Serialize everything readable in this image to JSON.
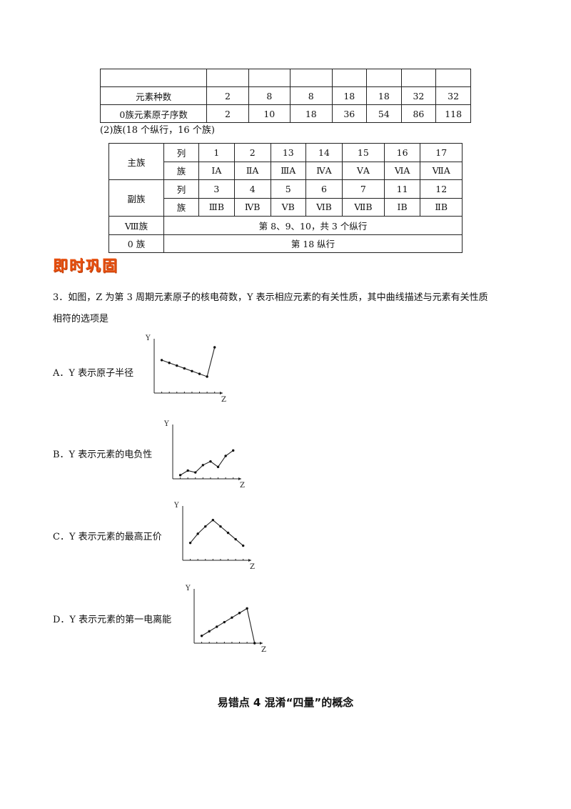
{
  "table1": {
    "header": [
      "",
      "",
      "",
      "",
      "",
      "",
      "",
      ""
    ],
    "rows": [
      {
        "label": "元素种数",
        "values": [
          "2",
          "8",
          "8",
          "18",
          "18",
          "32",
          "32"
        ]
      },
      {
        "label": "0族元素原子序数",
        "values": [
          "2",
          "10",
          "18",
          "36",
          "54",
          "86",
          "118"
        ]
      }
    ]
  },
  "group_note": "(2)族(18 个纵行，16 个族)",
  "table2": {
    "main_label": "主族",
    "main_col_label": "列",
    "main_cols": [
      "1",
      "2",
      "13",
      "14",
      "15",
      "16",
      "17"
    ],
    "main_group_label": "族",
    "main_groups": [
      "ⅠA",
      "ⅡA",
      "ⅢA",
      "ⅣA",
      "ⅤA",
      "ⅥA",
      "ⅦA"
    ],
    "sub_label": "副族",
    "sub_col_label": "列",
    "sub_cols": [
      "3",
      "4",
      "5",
      "6",
      "7",
      "11",
      "12"
    ],
    "sub_group_label": "族",
    "sub_groups": [
      "ⅢB",
      "ⅣB",
      "ⅤB",
      "ⅥB",
      "ⅦB",
      "ⅠB",
      "ⅡB"
    ],
    "viii_label": "Ⅷ族",
    "viii_text": "第  8、9、10，共 3 个纵行",
    "zero_label": "0 族",
    "zero_text": "第  18 纵行"
  },
  "badge": "即时巩固",
  "question": {
    "line1": "3．如图，Z 为第 3 周期元素原子的核电荷数，Y 表示相应元素的有关性质，其中曲线描述与元素有关性质",
    "line2": "相符的选项是"
  },
  "options": [
    {
      "text": "A．Y 表示原子半径"
    },
    {
      "text": "B．Y 表示元素的电负性"
    },
    {
      "text": "C．Y 表示元素的最高正价"
    },
    {
      "text": "D．Y 表示元素的第一电离能"
    }
  ],
  "plot_axes": {
    "y": "Y",
    "x": "Z"
  },
  "chart_data": [
    {
      "type": "line",
      "xlabel": "Z",
      "ylabel": "Y",
      "x": [
        1,
        2,
        3,
        4,
        5,
        6,
        7,
        8
      ],
      "values": [
        0.72,
        0.66,
        0.6,
        0.54,
        0.48,
        0.42,
        0.36,
        1.0
      ]
    },
    {
      "type": "line",
      "xlabel": "Z",
      "ylabel": "Y",
      "x": [
        1,
        2,
        3,
        4,
        5,
        6,
        7,
        8
      ],
      "values": [
        0.08,
        0.18,
        0.14,
        0.3,
        0.38,
        0.26,
        0.5,
        0.62
      ]
    },
    {
      "type": "line",
      "xlabel": "Z",
      "ylabel": "Y",
      "x": [
        1,
        2,
        3,
        4,
        5,
        6,
        7,
        8
      ],
      "values": [
        0.38,
        0.58,
        0.74,
        0.88,
        0.74,
        0.6,
        0.46,
        0.32
      ]
    },
    {
      "type": "line",
      "xlabel": "Z",
      "ylabel": "Y",
      "x": [
        1,
        2,
        3,
        4,
        5,
        6,
        7,
        8
      ],
      "values": [
        0.16,
        0.26,
        0.36,
        0.46,
        0.56,
        0.66,
        0.76,
        0.0
      ]
    }
  ],
  "section_title": "易错点 4  混淆“四量”的概念"
}
